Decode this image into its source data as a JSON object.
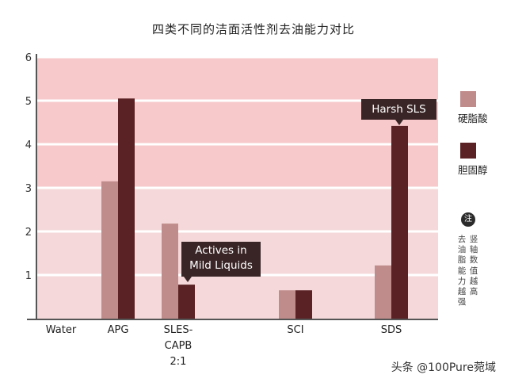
{
  "chart_data": {
    "type": "bar",
    "title": "四类不同的洁面活性剂去油能力对比",
    "categories": [
      "Water",
      "APG",
      "SLES-CAPB 2:1",
      "SCI",
      "SDS"
    ],
    "category_lines": [
      [
        "Water"
      ],
      [
        "APG"
      ],
      [
        "SLES-",
        "CAPB",
        "2:1"
      ],
      [
        "SCI"
      ],
      [
        "SDS"
      ]
    ],
    "series": [
      {
        "name": "硬脂酸",
        "color": "#c08c8b",
        "values": [
          0,
          3.15,
          2.18,
          0.65,
          1.22
        ]
      },
      {
        "name": "胆固醇",
        "color": "#5a2224",
        "values": [
          0,
          5.05,
          0.78,
          0.65,
          4.42
        ]
      }
    ],
    "ylim": [
      0,
      6
    ],
    "yticks": [
      1,
      2,
      3,
      4,
      5,
      6
    ],
    "grid": true,
    "legend_position": "right",
    "annotations": [
      {
        "text": "Harsh SLS",
        "category": "SDS"
      },
      {
        "text": "Actives in\nMild Liquids",
        "category": "SLES-CAPB 2:1"
      }
    ],
    "note_badge": "注",
    "note_columns": [
      "竖轴数值越高",
      "去油脂能力越强"
    ]
  },
  "watermark": "头条 @100Pure菀域"
}
